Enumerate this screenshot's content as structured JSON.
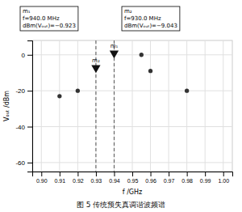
{
  "chart_data": {
    "type": "scatter",
    "xlabel": "f /GHz",
    "ylabel": "Vₒᵤₜ /dBm",
    "caption": "图 5   传统预失真调谐波频谱",
    "xlim": [
      0.895,
      1.005
    ],
    "ylim": [
      -65,
      8
    ],
    "xticks": [
      {
        "value": 0.9,
        "label": "0.90"
      },
      0.91,
      0.92,
      0.93,
      0.94,
      0.95,
      0.96,
      0.97,
      0.98,
      0.99,
      {
        "value": 1.0,
        "label": "1.00"
      }
    ],
    "yticks": [
      0,
      -20,
      -40,
      -60
    ],
    "grid": true,
    "x": [
      0.91,
      0.92,
      0.955,
      0.96,
      0.98
    ],
    "values": [
      -23,
      -20,
      0,
      -9,
      -20
    ],
    "color": "#333333",
    "marker": "circle",
    "vlines": [
      0.93,
      0.94
    ],
    "markers": [
      {
        "label": "m₁",
        "x": 0.94,
        "y": -0.923,
        "color": "#111111",
        "marker": "triangle-down"
      },
      {
        "label": "m₂",
        "x": 0.93,
        "y": -9.043,
        "color": "#111111",
        "marker": "triangle-down"
      }
    ],
    "annotations": [
      {
        "lines": [
          "m₁",
          "f=940.0 MHz",
          "dBm(Vₒᵤₜ)=−0.923"
        ]
      },
      {
        "lines": [
          "m₂",
          "f=930.0 MHz",
          "dBm(Vₒᵤₜ)=−9.043"
        ]
      }
    ]
  }
}
